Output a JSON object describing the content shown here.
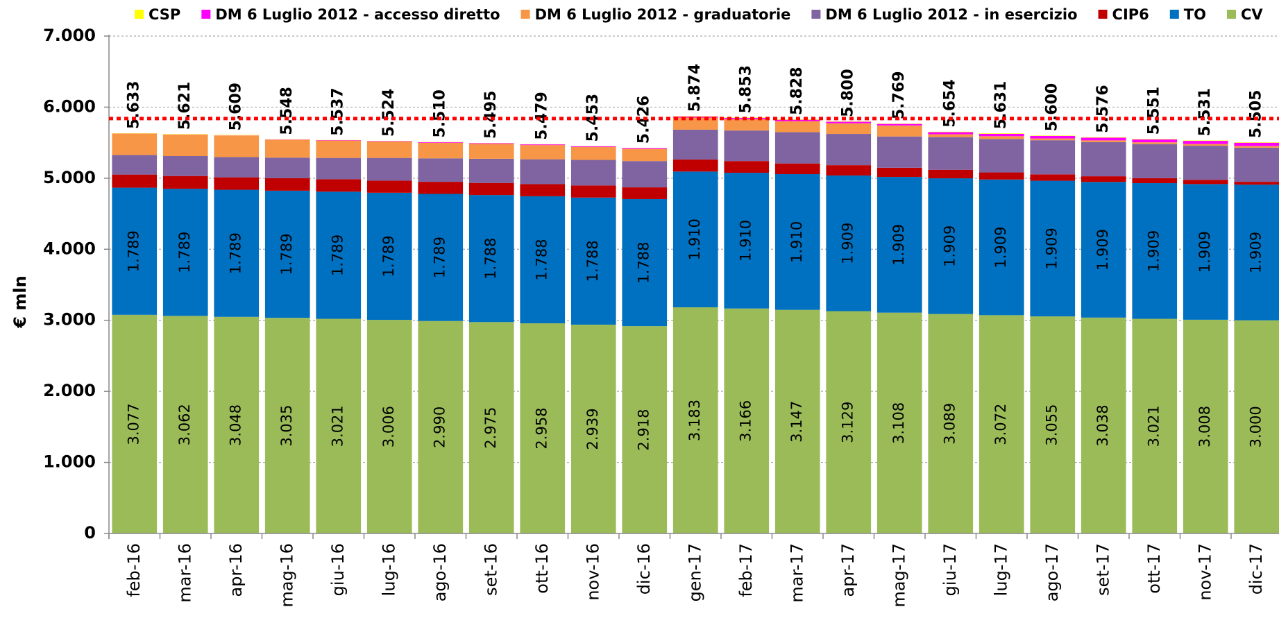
{
  "chart_data": {
    "type": "stacked-bar",
    "y_label": "€ mln",
    "categories": [
      "feb-16",
      "mar-16",
      "apr-16",
      "mag-16",
      "giu-16",
      "lug-16",
      "ago-16",
      "set-16",
      "ott-16",
      "nov-16",
      "dic-16",
      "gen-17",
      "feb-17",
      "mar-17",
      "apr-17",
      "mag-17",
      "giu-17",
      "lug-17",
      "ago-17",
      "set-17",
      "ott-17",
      "nov-17",
      "dic-17"
    ],
    "ylim": [
      0,
      7000
    ],
    "yticks": [
      0,
      {
        "value": 1000,
        "label": "1.000"
      },
      {
        "value": 2000,
        "label": "2.000"
      },
      {
        "value": 3000,
        "label": "3.000"
      },
      {
        "value": 4000,
        "label": "4.000"
      },
      {
        "value": 5000,
        "label": "5.000"
      },
      {
        "value": 6000,
        "label": "6.000"
      },
      {
        "value": 7000,
        "label": "7.000"
      }
    ],
    "grid": true,
    "reference_line": {
      "value": 5840,
      "color": "#ff0000"
    },
    "series": [
      {
        "name": "CSP",
        "color": "#ffff00",
        "values": [
          5,
          7,
          8,
          4,
          2,
          3,
          3,
          3,
          3,
          3,
          3,
          6,
          5,
          6,
          5,
          5,
          6,
          7,
          6,
          6,
          6,
          6,
          6
        ]
      },
      {
        "name": "DM 6 Luglio 2012 - accesso diretto",
        "color": "#ff00ff",
        "values": [
          2,
          3,
          4,
          5,
          5,
          6,
          8,
          9,
          10,
          11,
          12,
          15,
          17,
          20,
          22,
          22,
          30,
          33,
          35,
          38,
          40,
          43,
          45
        ]
      },
      {
        "name": "DM 6 Luglio 2012 - graduatorie",
        "color": "#f79646",
        "values": [
          300,
          300,
          300,
          250,
          245,
          230,
          220,
          210,
          200,
          182,
          170,
          170,
          160,
          155,
          150,
          155,
          40,
          40,
          25,
          25,
          25,
          25,
          25
        ]
      },
      {
        "name": "DM 6 Luglio 2012 - in esercizio",
        "color": "#8064a2",
        "values": [
          275,
          280,
          285,
          290,
          300,
          320,
          330,
          340,
          350,
          360,
          370,
          420,
          430,
          440,
          440,
          440,
          460,
          470,
          480,
          480,
          480,
          480,
          480
        ]
      },
      {
        "name": "CIP6",
        "color": "#c00000",
        "values": [
          185,
          180,
          175,
          175,
          175,
          170,
          170,
          170,
          170,
          170,
          165,
          170,
          165,
          150,
          145,
          130,
          120,
          100,
          90,
          80,
          70,
          60,
          40
        ]
      },
      {
        "name": "TO",
        "color": "#0070c0",
        "values": [
          1789,
          1789,
          1789,
          1789,
          1789,
          1789,
          1789,
          1788,
          1788,
          1788,
          1788,
          1910,
          1910,
          1910,
          1909,
          1909,
          1909,
          1909,
          1909,
          1909,
          1909,
          1909,
          1909
        ],
        "value_labels": [
          "1.789",
          "1.789",
          "1.789",
          "1.789",
          "1.789",
          "1.789",
          "1.789",
          "1.788",
          "1.788",
          "1.788",
          "1.788",
          "1.910",
          "1.910",
          "1.910",
          "1.909",
          "1.909",
          "1.909",
          "1.909",
          "1.909",
          "1.909",
          "1.909",
          "1.909",
          "1.909"
        ]
      },
      {
        "name": "CV",
        "color": "#9bbb59",
        "values": [
          3077,
          3062,
          3048,
          3035,
          3021,
          3006,
          2990,
          2975,
          2958,
          2939,
          2918,
          3183,
          3166,
          3147,
          3129,
          3108,
          3089,
          3072,
          3055,
          3038,
          3021,
          3008,
          3000
        ],
        "value_labels": [
          "3.077",
          "3.062",
          "3.048",
          "3.035",
          "3.021",
          "3.006",
          "2.990",
          "2.975",
          "2.958",
          "2.939",
          "2.918",
          "3.183",
          "3.166",
          "3.147",
          "3.129",
          "3.108",
          "3.089",
          "3.072",
          "3.055",
          "3.038",
          "3.021",
          "3.008",
          "3.000"
        ]
      }
    ],
    "totals": {
      "values": [
        5633,
        5621,
        5609,
        5548,
        5537,
        5524,
        5510,
        5495,
        5479,
        5453,
        5426,
        5874,
        5853,
        5828,
        5800,
        5769,
        5654,
        5631,
        5600,
        5576,
        5551,
        5531,
        5505
      ],
      "value_labels": [
        "5.633",
        "5.621",
        "5.609",
        "5.548",
        "5.537",
        "5.524",
        "5.510",
        "5.495",
        "5.479",
        "5.453",
        "5.426",
        "5.874",
        "5.853",
        "5.828",
        "5.800",
        "5.769",
        "5.654",
        "5.631",
        "5.600",
        "5.576",
        "5.551",
        "5.531",
        "5.505"
      ]
    }
  }
}
